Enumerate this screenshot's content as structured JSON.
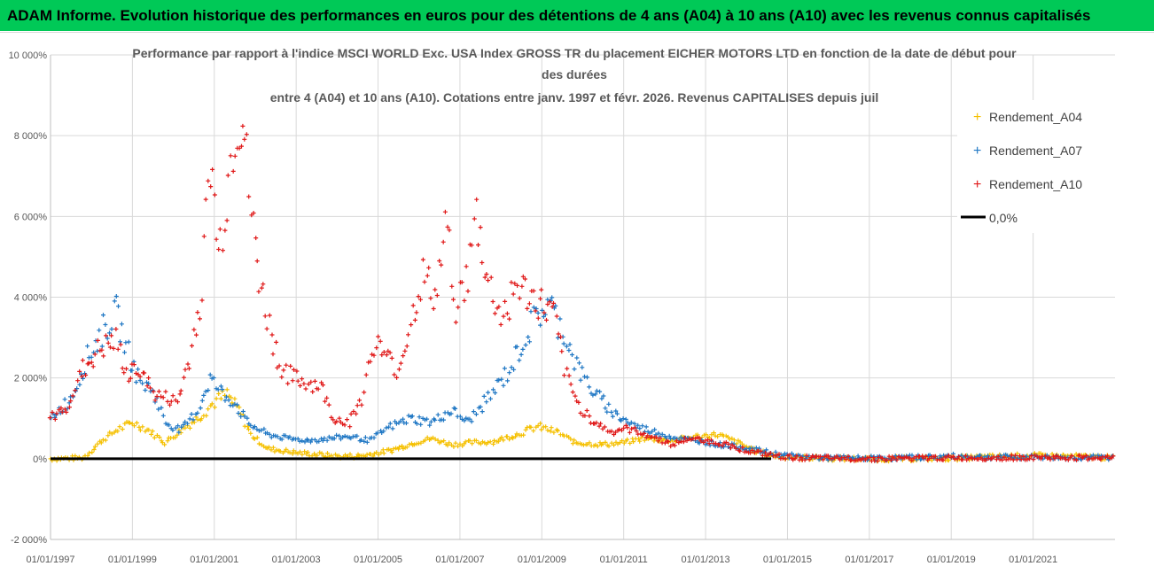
{
  "banner": {
    "text": "ADAM Informe. Evolution historique des performances en euros pour des détentions de 4 ans (A04) à 10 ans (A10) avec les revenus connus capitalisés",
    "background": "#00c957"
  },
  "chart_data": {
    "type": "scatter",
    "title_lines": [
      "Performance par rapport à l'indice MSCI WORLD Exc. USA Index GROSS TR  du placement EICHER MOTORS LTD en fonction de la date de début pour",
      "des durées",
      "entre 4 (A04) et 10 ans (A10).  Cotations entre janv. 1997 et févr. 2026. Revenus CAPITALISES depuis juil"
    ],
    "ylim": [
      -2000,
      10000
    ],
    "y_ticks": [
      -2000,
      0,
      2000,
      4000,
      6000,
      8000,
      10000
    ],
    "y_tick_labels": [
      "-2 000%",
      "0%",
      "2 000%",
      "4 000%",
      "6 000%",
      "8 000%",
      "10 000%"
    ],
    "xlim": [
      1997.0,
      2023.0
    ],
    "x_ticks": [
      1997,
      1999,
      2001,
      2003,
      2005,
      2007,
      2009,
      2011,
      2013,
      2015,
      2017,
      2019,
      2021
    ],
    "x_tick_labels": [
      "01/01/1997",
      "01/01/1999",
      "01/01/2001",
      "01/01/2003",
      "01/01/2005",
      "01/01/2007",
      "01/01/2009",
      "01/01/2011",
      "01/01/2013",
      "01/01/2015",
      "01/01/2017",
      "01/01/2019",
      "01/01/2021"
    ],
    "grid": true,
    "legend_position": "right",
    "series": [
      {
        "name": "Rendement_A04",
        "color": "#f5c000",
        "points": [
          [
            1997.0,
            0
          ],
          [
            1997.8,
            20
          ],
          [
            1998.2,
            400
          ],
          [
            1998.6,
            700
          ],
          [
            1999.0,
            900
          ],
          [
            1999.4,
            700
          ],
          [
            1999.8,
            400
          ],
          [
            2000.2,
            700
          ],
          [
            2000.7,
            1100
          ],
          [
            2001.0,
            1400
          ],
          [
            2001.3,
            1600
          ],
          [
            2001.6,
            1200
          ],
          [
            2001.9,
            600
          ],
          [
            2002.3,
            250
          ],
          [
            2003.0,
            150
          ],
          [
            2004.0,
            60
          ],
          [
            2004.6,
            70
          ],
          [
            2005.3,
            200
          ],
          [
            2005.9,
            400
          ],
          [
            2006.3,
            500
          ],
          [
            2006.8,
            350
          ],
          [
            2007.3,
            400
          ],
          [
            2007.8,
            420
          ],
          [
            2008.4,
            600
          ],
          [
            2008.9,
            800
          ],
          [
            2009.4,
            650
          ],
          [
            2009.8,
            400
          ],
          [
            2010.5,
            350
          ],
          [
            2011.0,
            400
          ],
          [
            2011.5,
            500
          ],
          [
            2012.2,
            450
          ],
          [
            2012.8,
            550
          ],
          [
            2013.3,
            600
          ],
          [
            2013.8,
            400
          ],
          [
            2014.2,
            200
          ],
          [
            2014.6,
            80
          ],
          [
            2015.0,
            40
          ],
          [
            2016.0,
            10
          ],
          [
            2017.0,
            -10
          ],
          [
            2018.0,
            0
          ],
          [
            2019.0,
            10
          ],
          [
            2020.0,
            50
          ],
          [
            2021.0,
            80
          ],
          [
            2022.0,
            60
          ],
          [
            2023.0,
            20
          ]
        ]
      },
      {
        "name": "Rendement_A07",
        "color": "#1f77c4",
        "points": [
          [
            1997.0,
            1000
          ],
          [
            1997.5,
            1500
          ],
          [
            1997.9,
            2500
          ],
          [
            1998.3,
            3200
          ],
          [
            1998.6,
            3600
          ],
          [
            1998.9,
            2600
          ],
          [
            1999.2,
            1900
          ],
          [
            1999.5,
            1700
          ],
          [
            1999.8,
            900
          ],
          [
            2000.2,
            700
          ],
          [
            2000.6,
            1200
          ],
          [
            2000.9,
            2000
          ],
          [
            2001.2,
            1600
          ],
          [
            2001.5,
            1400
          ],
          [
            2001.8,
            900
          ],
          [
            2002.3,
            600
          ],
          [
            2002.8,
            500
          ],
          [
            2003.3,
            450
          ],
          [
            2003.8,
            500
          ],
          [
            2004.3,
            550
          ],
          [
            2004.8,
            450
          ],
          [
            2005.3,
            800
          ],
          [
            2005.8,
            1000
          ],
          [
            2006.3,
            900
          ],
          [
            2006.8,
            1200
          ],
          [
            2007.2,
            900
          ],
          [
            2007.7,
            1500
          ],
          [
            2008.2,
            2200
          ],
          [
            2008.6,
            3000
          ],
          [
            2008.9,
            3600
          ],
          [
            2009.2,
            3800
          ],
          [
            2009.6,
            3000
          ],
          [
            2009.9,
            2200
          ],
          [
            2010.3,
            1600
          ],
          [
            2010.8,
            1100
          ],
          [
            2011.3,
            800
          ],
          [
            2011.8,
            650
          ],
          [
            2012.3,
            500
          ],
          [
            2012.8,
            450
          ],
          [
            2013.3,
            350
          ],
          [
            2013.8,
            300
          ],
          [
            2014.3,
            200
          ],
          [
            2014.8,
            100
          ],
          [
            2015.3,
            50
          ],
          [
            2016.0,
            20
          ],
          [
            2017.0,
            10
          ],
          [
            2018.0,
            30
          ],
          [
            2019.0,
            60
          ],
          [
            2020.0,
            40
          ],
          [
            2021.0,
            40
          ],
          [
            2022.0,
            30
          ],
          [
            2023.0,
            30
          ]
        ]
      },
      {
        "name": "Rendement_A10",
        "color": "#e01818",
        "points": [
          [
            1997.0,
            1000
          ],
          [
            1997.4,
            1300
          ],
          [
            1997.8,
            2200
          ],
          [
            1998.2,
            2700
          ],
          [
            1998.6,
            2900
          ],
          [
            1998.9,
            2000
          ],
          [
            1999.2,
            2300
          ],
          [
            1999.5,
            1600
          ],
          [
            1999.8,
            1500
          ],
          [
            2000.1,
            1400
          ],
          [
            2000.4,
            2500
          ],
          [
            2000.7,
            4200
          ],
          [
            2000.9,
            7500
          ],
          [
            2001.1,
            5000
          ],
          [
            2001.3,
            6500
          ],
          [
            2001.5,
            8200
          ],
          [
            2001.7,
            8500
          ],
          [
            2001.9,
            6000
          ],
          [
            2002.1,
            4500
          ],
          [
            2002.3,
            3500
          ],
          [
            2002.6,
            2300
          ],
          [
            2002.9,
            2000
          ],
          [
            2003.2,
            1900
          ],
          [
            2003.6,
            1800
          ],
          [
            2003.9,
            1000
          ],
          [
            2004.3,
            900
          ],
          [
            2004.6,
            1500
          ],
          [
            2004.9,
            2900
          ],
          [
            2005.2,
            2500
          ],
          [
            2005.5,
            2200
          ],
          [
            2005.8,
            3400
          ],
          [
            2006.1,
            4500
          ],
          [
            2006.4,
            4000
          ],
          [
            2006.7,
            5800
          ],
          [
            2006.9,
            3800
          ],
          [
            2007.2,
            4500
          ],
          [
            2007.4,
            6000
          ],
          [
            2007.7,
            4300
          ],
          [
            2008.0,
            3500
          ],
          [
            2008.4,
            4300
          ],
          [
            2008.7,
            4000
          ],
          [
            2009.0,
            3800
          ],
          [
            2009.3,
            3500
          ],
          [
            2009.6,
            2000
          ],
          [
            2009.9,
            1300
          ],
          [
            2010.3,
            900
          ],
          [
            2010.7,
            650
          ],
          [
            2011.0,
            750
          ],
          [
            2011.4,
            650
          ],
          [
            2011.8,
            500
          ],
          [
            2012.2,
            350
          ],
          [
            2012.6,
            500
          ],
          [
            2013.0,
            450
          ],
          [
            2013.5,
            350
          ],
          [
            2014.0,
            200
          ],
          [
            2014.5,
            100
          ],
          [
            2015.0,
            30
          ],
          [
            2016.0,
            10
          ],
          [
            2017.0,
            0
          ],
          [
            2018.0,
            10
          ],
          [
            2019.0,
            20
          ],
          [
            2020.0,
            20
          ],
          [
            2021.0,
            30
          ],
          [
            2022.0,
            20
          ],
          [
            2023.0,
            20
          ]
        ]
      }
    ],
    "reference_line": {
      "name": "0,0%",
      "value": 0,
      "color": "#000000"
    }
  }
}
